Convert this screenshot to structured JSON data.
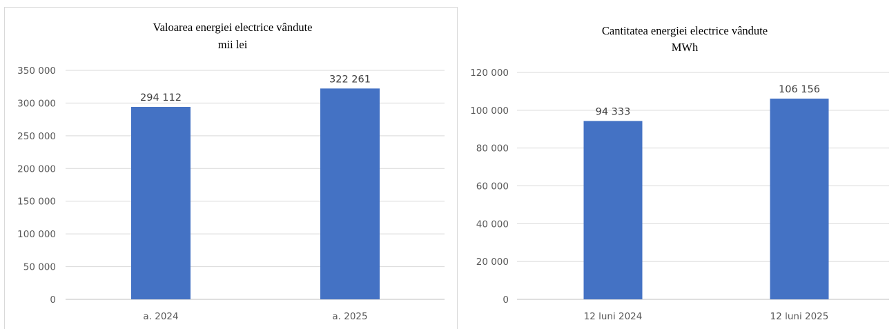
{
  "chart_data": [
    {
      "type": "bar",
      "title": "Valoarea energiei electrice vândute",
      "subtitle": "mii lei",
      "categories": [
        "a. 2024",
        "a. 2025"
      ],
      "values": [
        294112,
        322261
      ],
      "value_labels": [
        "294 112",
        "322 261"
      ],
      "ylim": [
        0,
        350000
      ],
      "yticks": [
        0,
        50000,
        100000,
        150000,
        200000,
        250000,
        300000,
        350000
      ],
      "ytick_labels": [
        "0",
        "50 000",
        "100 000",
        "150 000",
        "200 000",
        "250 000",
        "300 000",
        "350 000"
      ],
      "grid": true,
      "bar_color": "#4472C4"
    },
    {
      "type": "bar",
      "title": "Cantitatea energiei electrice vândute",
      "subtitle": "MWh",
      "categories": [
        "12 luni 2024",
        "12 luni 2025"
      ],
      "values": [
        94333,
        106156
      ],
      "value_labels": [
        "94 333",
        "106 156"
      ],
      "ylim": [
        0,
        120000
      ],
      "yticks": [
        0,
        20000,
        40000,
        60000,
        80000,
        100000,
        120000
      ],
      "ytick_labels": [
        "0",
        "20 000",
        "40 000",
        "60 000",
        "80 000",
        "100 000",
        "120 000"
      ],
      "grid": true,
      "bar_color": "#4472C4"
    }
  ]
}
